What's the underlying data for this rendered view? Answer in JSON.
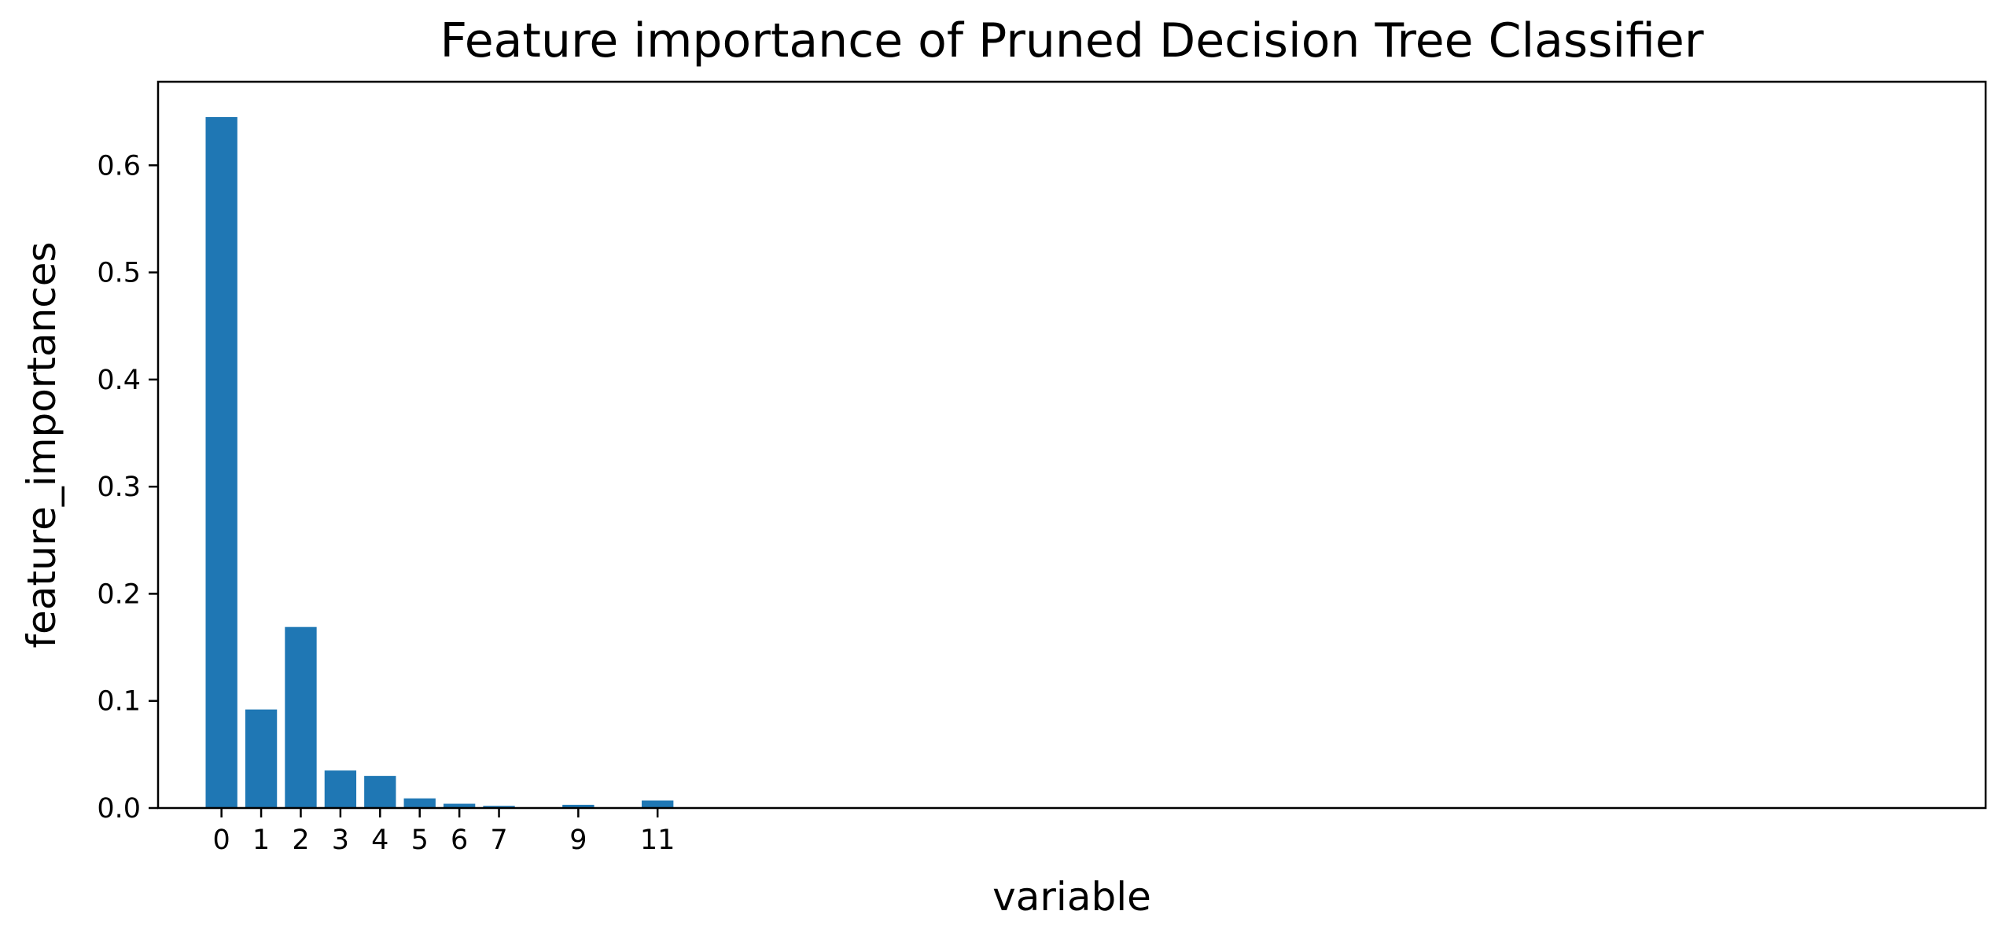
{
  "chart_data": {
    "type": "bar",
    "title": "Feature importance of Pruned Decision Tree Classifier",
    "xlabel": "variable",
    "ylabel": "feature_importances",
    "x": [
      0,
      1,
      2,
      3,
      4,
      5,
      6,
      7,
      8,
      9,
      10,
      11
    ],
    "values": [
      0.645,
      0.092,
      0.169,
      0.035,
      0.03,
      0.009,
      0.004,
      0.002,
      0.0,
      0.003,
      0.0,
      0.007
    ],
    "xticks": [
      0,
      1,
      2,
      3,
      4,
      5,
      6,
      7,
      9,
      11
    ],
    "xtick_labels": [
      "0",
      "1",
      "2",
      "3",
      "4",
      "5",
      "6",
      "7",
      "9",
      "11"
    ],
    "yticks": [
      0.0,
      0.1,
      0.2,
      0.3,
      0.4,
      0.5,
      0.6
    ],
    "ytick_labels": [
      "0.0",
      "0.1",
      "0.2",
      "0.3",
      "0.4",
      "0.5",
      "0.6"
    ],
    "xlim": [
      -1.6,
      44.5
    ],
    "ylim": [
      0,
      0.678
    ],
    "grid": false,
    "bar_color": "#1f77b4",
    "axis_color": "#000000"
  }
}
